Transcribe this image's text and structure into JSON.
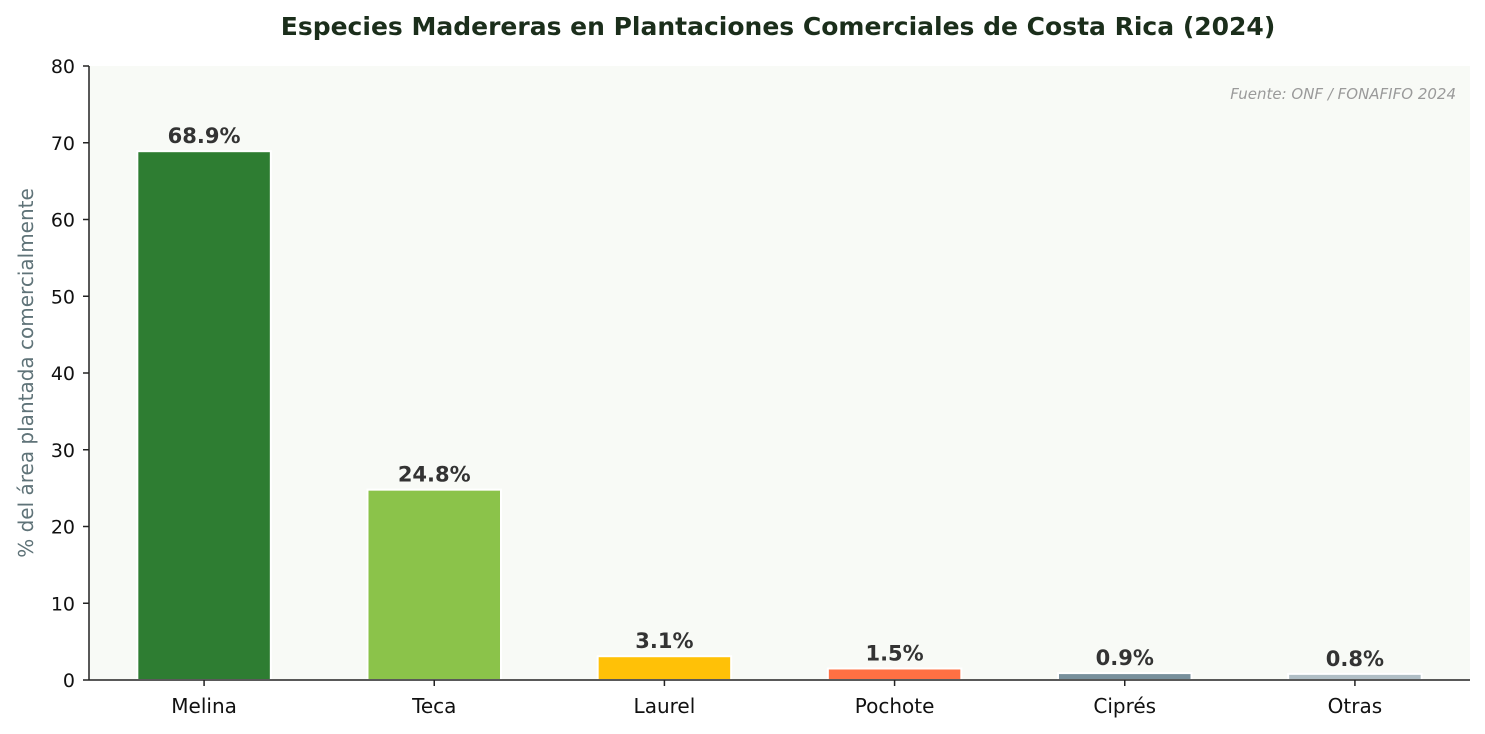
{
  "chart_data": {
    "type": "bar",
    "title": "Especies Madereras en Plantaciones Comerciales de Costa Rica (2024)",
    "ylabel": "% del área plantada comercialmente",
    "xlabel": "",
    "categories": [
      "Melina",
      "Teca",
      "Laurel",
      "Pochote",
      "Ciprés",
      "Otras"
    ],
    "values": [
      68.9,
      24.8,
      3.1,
      1.5,
      0.9,
      0.8
    ],
    "value_labels": [
      "68.9%",
      "24.8%",
      "3.1%",
      "1.5%",
      "0.9%",
      "0.8%"
    ],
    "colors": [
      "#2e7d32",
      "#8bc34a",
      "#ffc107",
      "#ff7043",
      "#78909c",
      "#b0bec5"
    ],
    "ylim": [
      0,
      80
    ],
    "yticks": [
      0,
      10,
      20,
      30,
      40,
      50,
      60,
      70,
      80
    ],
    "source_note": "Fuente: ONF / FONAFIFO 2024",
    "grid": false,
    "background": "#f8faf6"
  }
}
